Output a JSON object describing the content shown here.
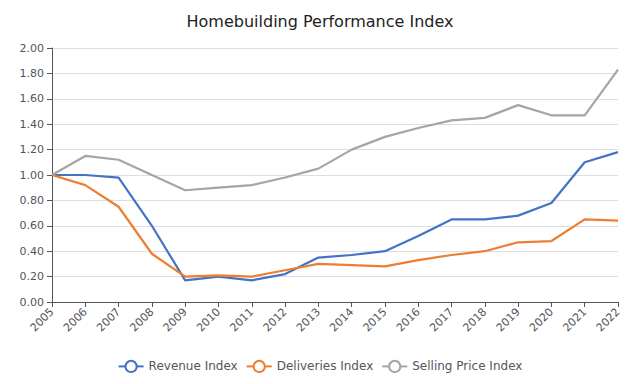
{
  "chart_data": {
    "type": "line",
    "title": "Homebuilding Performance Index",
    "x": [
      2005,
      2006,
      2007,
      2008,
      2009,
      2010,
      2011,
      2012,
      2013,
      2014,
      2015,
      2016,
      2017,
      2018,
      2019,
      2020,
      2021,
      2022
    ],
    "xlim": [
      2005,
      2022
    ],
    "xticks": [
      2005,
      2006,
      2007,
      2008,
      2009,
      2010,
      2011,
      2012,
      2013,
      2014,
      2015,
      2016,
      2017,
      2018,
      2019,
      2020,
      2021,
      2022
    ],
    "series": [
      {
        "name": "Revenue Index",
        "color": "#4472C4",
        "values": [
          1.0,
          1.0,
          0.98,
          0.6,
          0.17,
          0.2,
          0.17,
          0.22,
          0.35,
          0.37,
          0.4,
          0.52,
          0.65,
          0.65,
          0.68,
          0.78,
          1.1,
          1.18
        ]
      },
      {
        "name": "Deliveries Index",
        "color": "#ED7D31",
        "values": [
          1.0,
          0.92,
          0.75,
          0.38,
          0.2,
          0.21,
          0.2,
          0.25,
          0.3,
          0.29,
          0.28,
          0.33,
          0.37,
          0.4,
          0.47,
          0.48,
          0.65,
          0.64
        ]
      },
      {
        "name": "Selling Price Index",
        "color": "#A5A5A5",
        "values": [
          1.0,
          1.15,
          1.12,
          1.0,
          0.88,
          0.9,
          0.92,
          0.98,
          1.05,
          1.2,
          1.3,
          1.37,
          1.43,
          1.45,
          1.55,
          1.47,
          1.47,
          1.83
        ]
      }
    ],
    "ylim": [
      0.0,
      2.0
    ],
    "yticks": [
      {
        "value": 0.0,
        "label": "0.00"
      },
      {
        "value": 0.2,
        "label": "0.20"
      },
      {
        "value": 0.4,
        "label": "0.40"
      },
      {
        "value": 0.6,
        "label": "0.60"
      },
      {
        "value": 0.8,
        "label": "0.80"
      },
      {
        "value": 1.0,
        "label": "1.00"
      },
      {
        "value": 1.2,
        "label": "1.20"
      },
      {
        "value": 1.4,
        "label": "1.40"
      },
      {
        "value": 1.6,
        "label": "1.60"
      },
      {
        "value": 1.8,
        "label": "1.80"
      },
      {
        "value": 2.0,
        "label": "2.00"
      }
    ],
    "grid": true,
    "legend": "bottom"
  }
}
